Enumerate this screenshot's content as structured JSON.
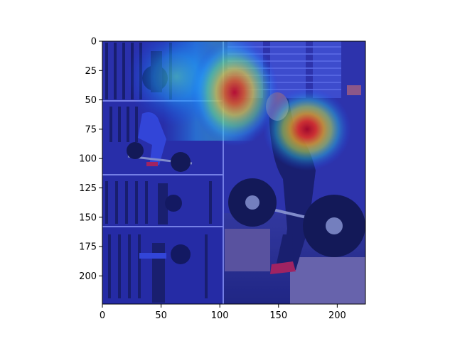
{
  "figure": {
    "type": "image-with-heatmap-overlay",
    "x_axis": {
      "range": [
        0,
        224
      ],
      "ticks": [
        {
          "value": 0,
          "label": "0"
        },
        {
          "value": 50,
          "label": "50"
        },
        {
          "value": 100,
          "label": "100"
        },
        {
          "value": 150,
          "label": "150"
        },
        {
          "value": 200,
          "label": "200"
        }
      ]
    },
    "y_axis": {
      "range": [
        0,
        224
      ],
      "inverted": true,
      "ticks": [
        {
          "value": 0,
          "label": "0"
        },
        {
          "value": 25,
          "label": "25"
        },
        {
          "value": 50,
          "label": "50"
        },
        {
          "value": 75,
          "label": "75"
        },
        {
          "value": 100,
          "label": "100"
        },
        {
          "value": 125,
          "label": "125"
        },
        {
          "value": 150,
          "label": "150"
        },
        {
          "value": 175,
          "label": "175"
        },
        {
          "value": 200,
          "label": "200"
        }
      ]
    },
    "colormap": "jet",
    "panel_boundaries": {
      "left_column_right_x": 103,
      "left_rows_bottom_y": [
        51,
        114,
        158,
        224
      ]
    },
    "hotspots": [
      {
        "x": 175,
        "y": 77,
        "intensity": 1.0
      },
      {
        "x": 112,
        "y": 45,
        "intensity": 0.9
      },
      {
        "x": 65,
        "y": 30,
        "intensity": 0.55
      }
    ]
  }
}
